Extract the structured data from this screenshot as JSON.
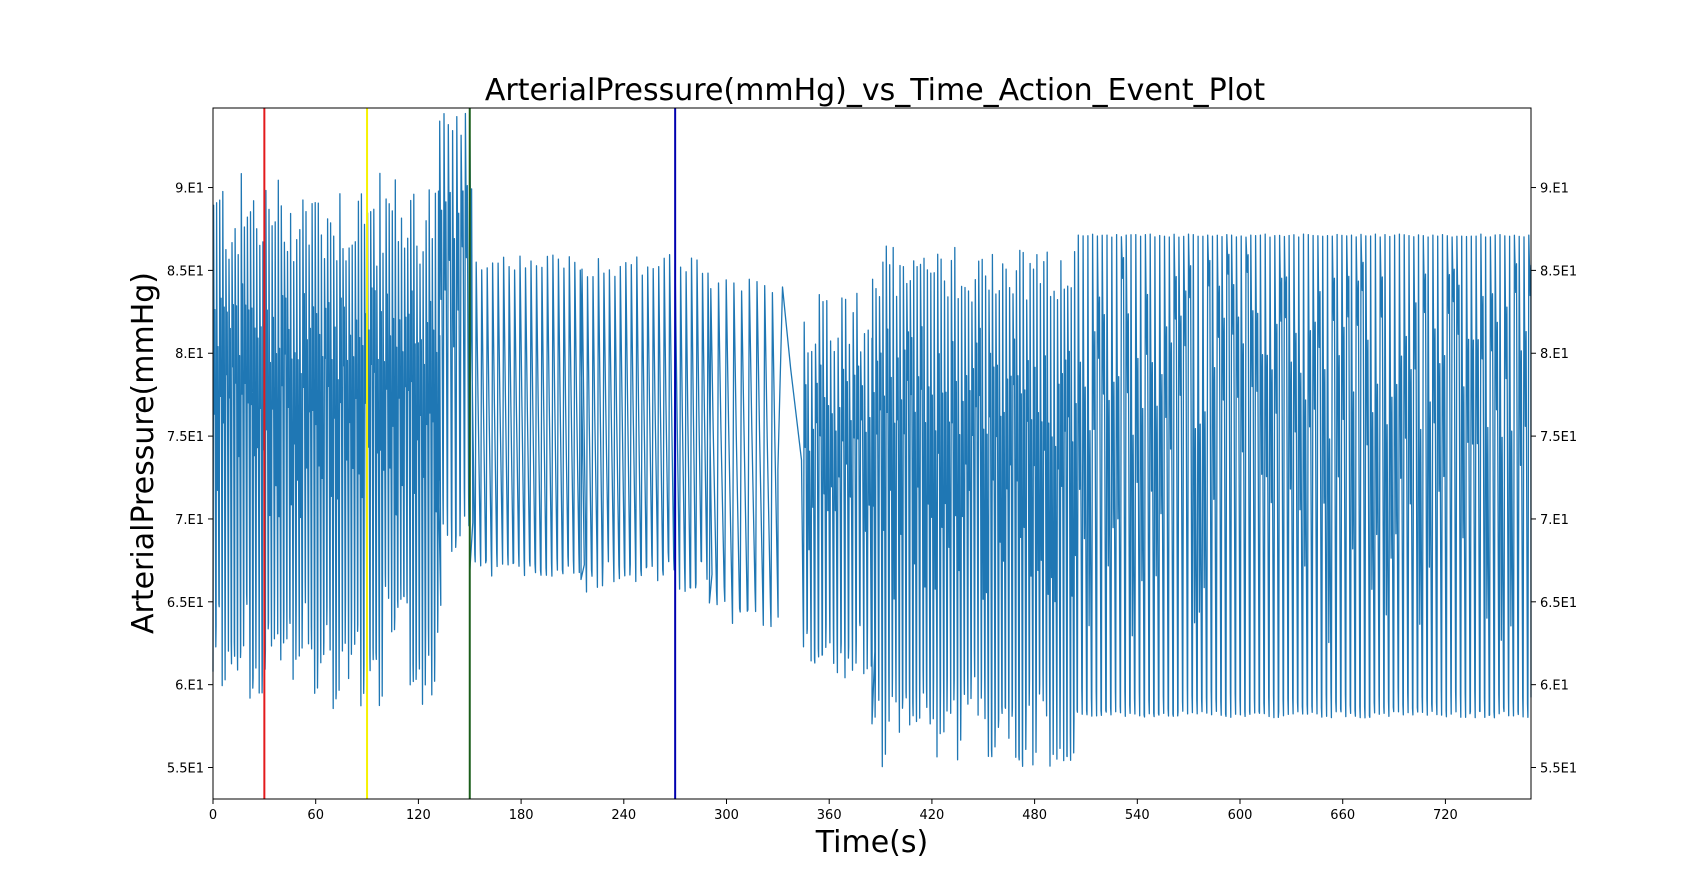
{
  "chart_data": {
    "type": "line",
    "title": "ArterialPressure(mmHg)_vs_Time_Action_Event_Plot",
    "xlabel": "Time(s)",
    "ylabel": "ArterialPressure(mmHg)",
    "xlim": [
      0,
      770
    ],
    "ylim": [
      53.1,
      94.8
    ],
    "x_ticks": [
      0,
      60,
      120,
      180,
      240,
      300,
      360,
      420,
      480,
      540,
      600,
      660,
      720
    ],
    "x_tick_labels": [
      "0",
      "60",
      "120",
      "180",
      "240",
      "300",
      "360",
      "420",
      "480",
      "540",
      "600",
      "660",
      "720"
    ],
    "y_ticks": [
      55,
      60,
      65,
      70,
      75,
      80,
      85,
      90
    ],
    "y_tick_labels": [
      "5.5E1",
      "6.E1",
      "6.5E1",
      "7.E1",
      "7.5E1",
      "8.E1",
      "8.5E1",
      "9.E1"
    ],
    "y_right_ticks": true,
    "grid": false,
    "series": [
      {
        "color": "#1f77b4",
        "segments": [
          {
            "x_start": 0,
            "x_end": 132,
            "period": 1.8,
            "peaks": [
              85,
              91
            ],
            "troughs": [
              58.5,
              66
            ],
            "secondary": [
              70,
              80
            ]
          },
          {
            "x_start": 132,
            "x_end": 150,
            "period": 2.5,
            "peaks": [
              93,
              94.5
            ],
            "troughs": [
              67,
              71
            ],
            "secondary": [
              80,
              88
            ]
          },
          {
            "x_start": 150,
            "x_end": 215,
            "period": 3.2,
            "peaks": [
              85,
              86
            ],
            "troughs": [
              66.5,
              67.5
            ]
          },
          {
            "x_start": 215,
            "x_end": 290,
            "period": 3.2,
            "peaks": [
              84.5,
              86
            ],
            "troughs": [
              65.5,
              67.5
            ]
          },
          {
            "x_start": 290,
            "x_end": 330,
            "period": 4.5,
            "peaks": [
              83.5,
              84.5
            ],
            "troughs": [
              63.5,
              65.5
            ]
          },
          {
            "x_start": 330,
            "x_end": 345,
            "period": 15,
            "peaks": [
              84,
              84
            ],
            "troughs": [
              73,
              73
            ]
          },
          {
            "x_start": 345,
            "x_end": 385,
            "period": 2.2,
            "peaks": [
              80,
              84
            ],
            "troughs": [
              60,
              64
            ],
            "secondary": [
              68,
              76
            ]
          },
          {
            "x_start": 385,
            "x_end": 505,
            "period": 2.0,
            "peaks": [
              83,
              86.5
            ],
            "troughs": [
              55,
              61
            ],
            "secondary": [
              65,
              79
            ]
          },
          {
            "x_start": 505,
            "x_end": 770,
            "period": 2.8,
            "peaks": [
              87,
              87.2
            ],
            "troughs": [
              58,
              58.4
            ],
            "secondary": [
              62.5,
              85.5
            ]
          }
        ]
      }
    ],
    "event_lines": [
      {
        "x": 30,
        "color": "#e31a1c"
      },
      {
        "x": 90,
        "color": "#f7f200"
      },
      {
        "x": 150,
        "color": "#1a5e1a"
      },
      {
        "x": 270,
        "color": "#0000b0"
      }
    ]
  }
}
